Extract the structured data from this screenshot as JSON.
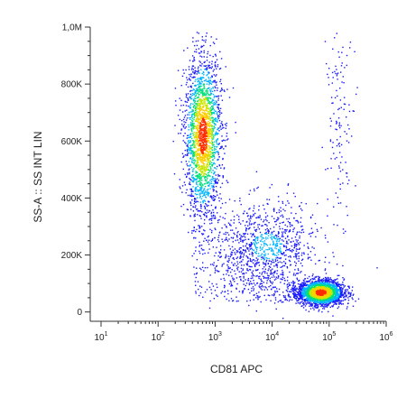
{
  "chart_data": {
    "type": "scatter",
    "title": "",
    "xlabel": "CD81 APC",
    "ylabel": "SS-A :: SS INT LIN",
    "x_scale": "log",
    "xlim": [
      10,
      1000000
    ],
    "x_ticks": [
      {
        "value": 10,
        "base": "10",
        "exp": "1"
      },
      {
        "value": 100,
        "base": "10",
        "exp": "2"
      },
      {
        "value": 1000,
        "base": "10",
        "exp": "3"
      },
      {
        "value": 10000,
        "base": "10",
        "exp": "4"
      },
      {
        "value": 100000,
        "base": "10",
        "exp": "5"
      },
      {
        "value": 1000000,
        "base": "10",
        "exp": "6"
      }
    ],
    "y_scale": "linear",
    "ylim": [
      -20000,
      1000000
    ],
    "y_ticks": [
      {
        "value": 0,
        "label": "0"
      },
      {
        "value": 200000,
        "label": "200K"
      },
      {
        "value": 400000,
        "label": "400K"
      },
      {
        "value": 600000,
        "label": "600K"
      },
      {
        "value": 800000,
        "label": "800K"
      },
      {
        "value": 1000000,
        "label": "1,0M"
      }
    ],
    "grid": false,
    "legend": "none",
    "colormap": [
      "#1a1aff",
      "#00b4ff",
      "#00e07a",
      "#c8e600",
      "#ffcc00",
      "#ff2a00"
    ],
    "populations": [
      {
        "x_center": 600,
        "y_center": 620000,
        "x_spread_decades": 0.16,
        "y_spread": 140000,
        "density": "high"
      },
      {
        "x_center": 70000,
        "y_center": 70000,
        "x_spread_decades": 0.2,
        "y_spread": 22000,
        "density": "high"
      },
      {
        "x_center": 8000,
        "y_center": 230000,
        "x_spread_decades": 0.45,
        "y_spread": 80000,
        "density": "medium"
      },
      {
        "x_center": 150000,
        "y_center": 700000,
        "x_spread_decades": 0.12,
        "y_spread": 180000,
        "density": "low"
      }
    ]
  }
}
